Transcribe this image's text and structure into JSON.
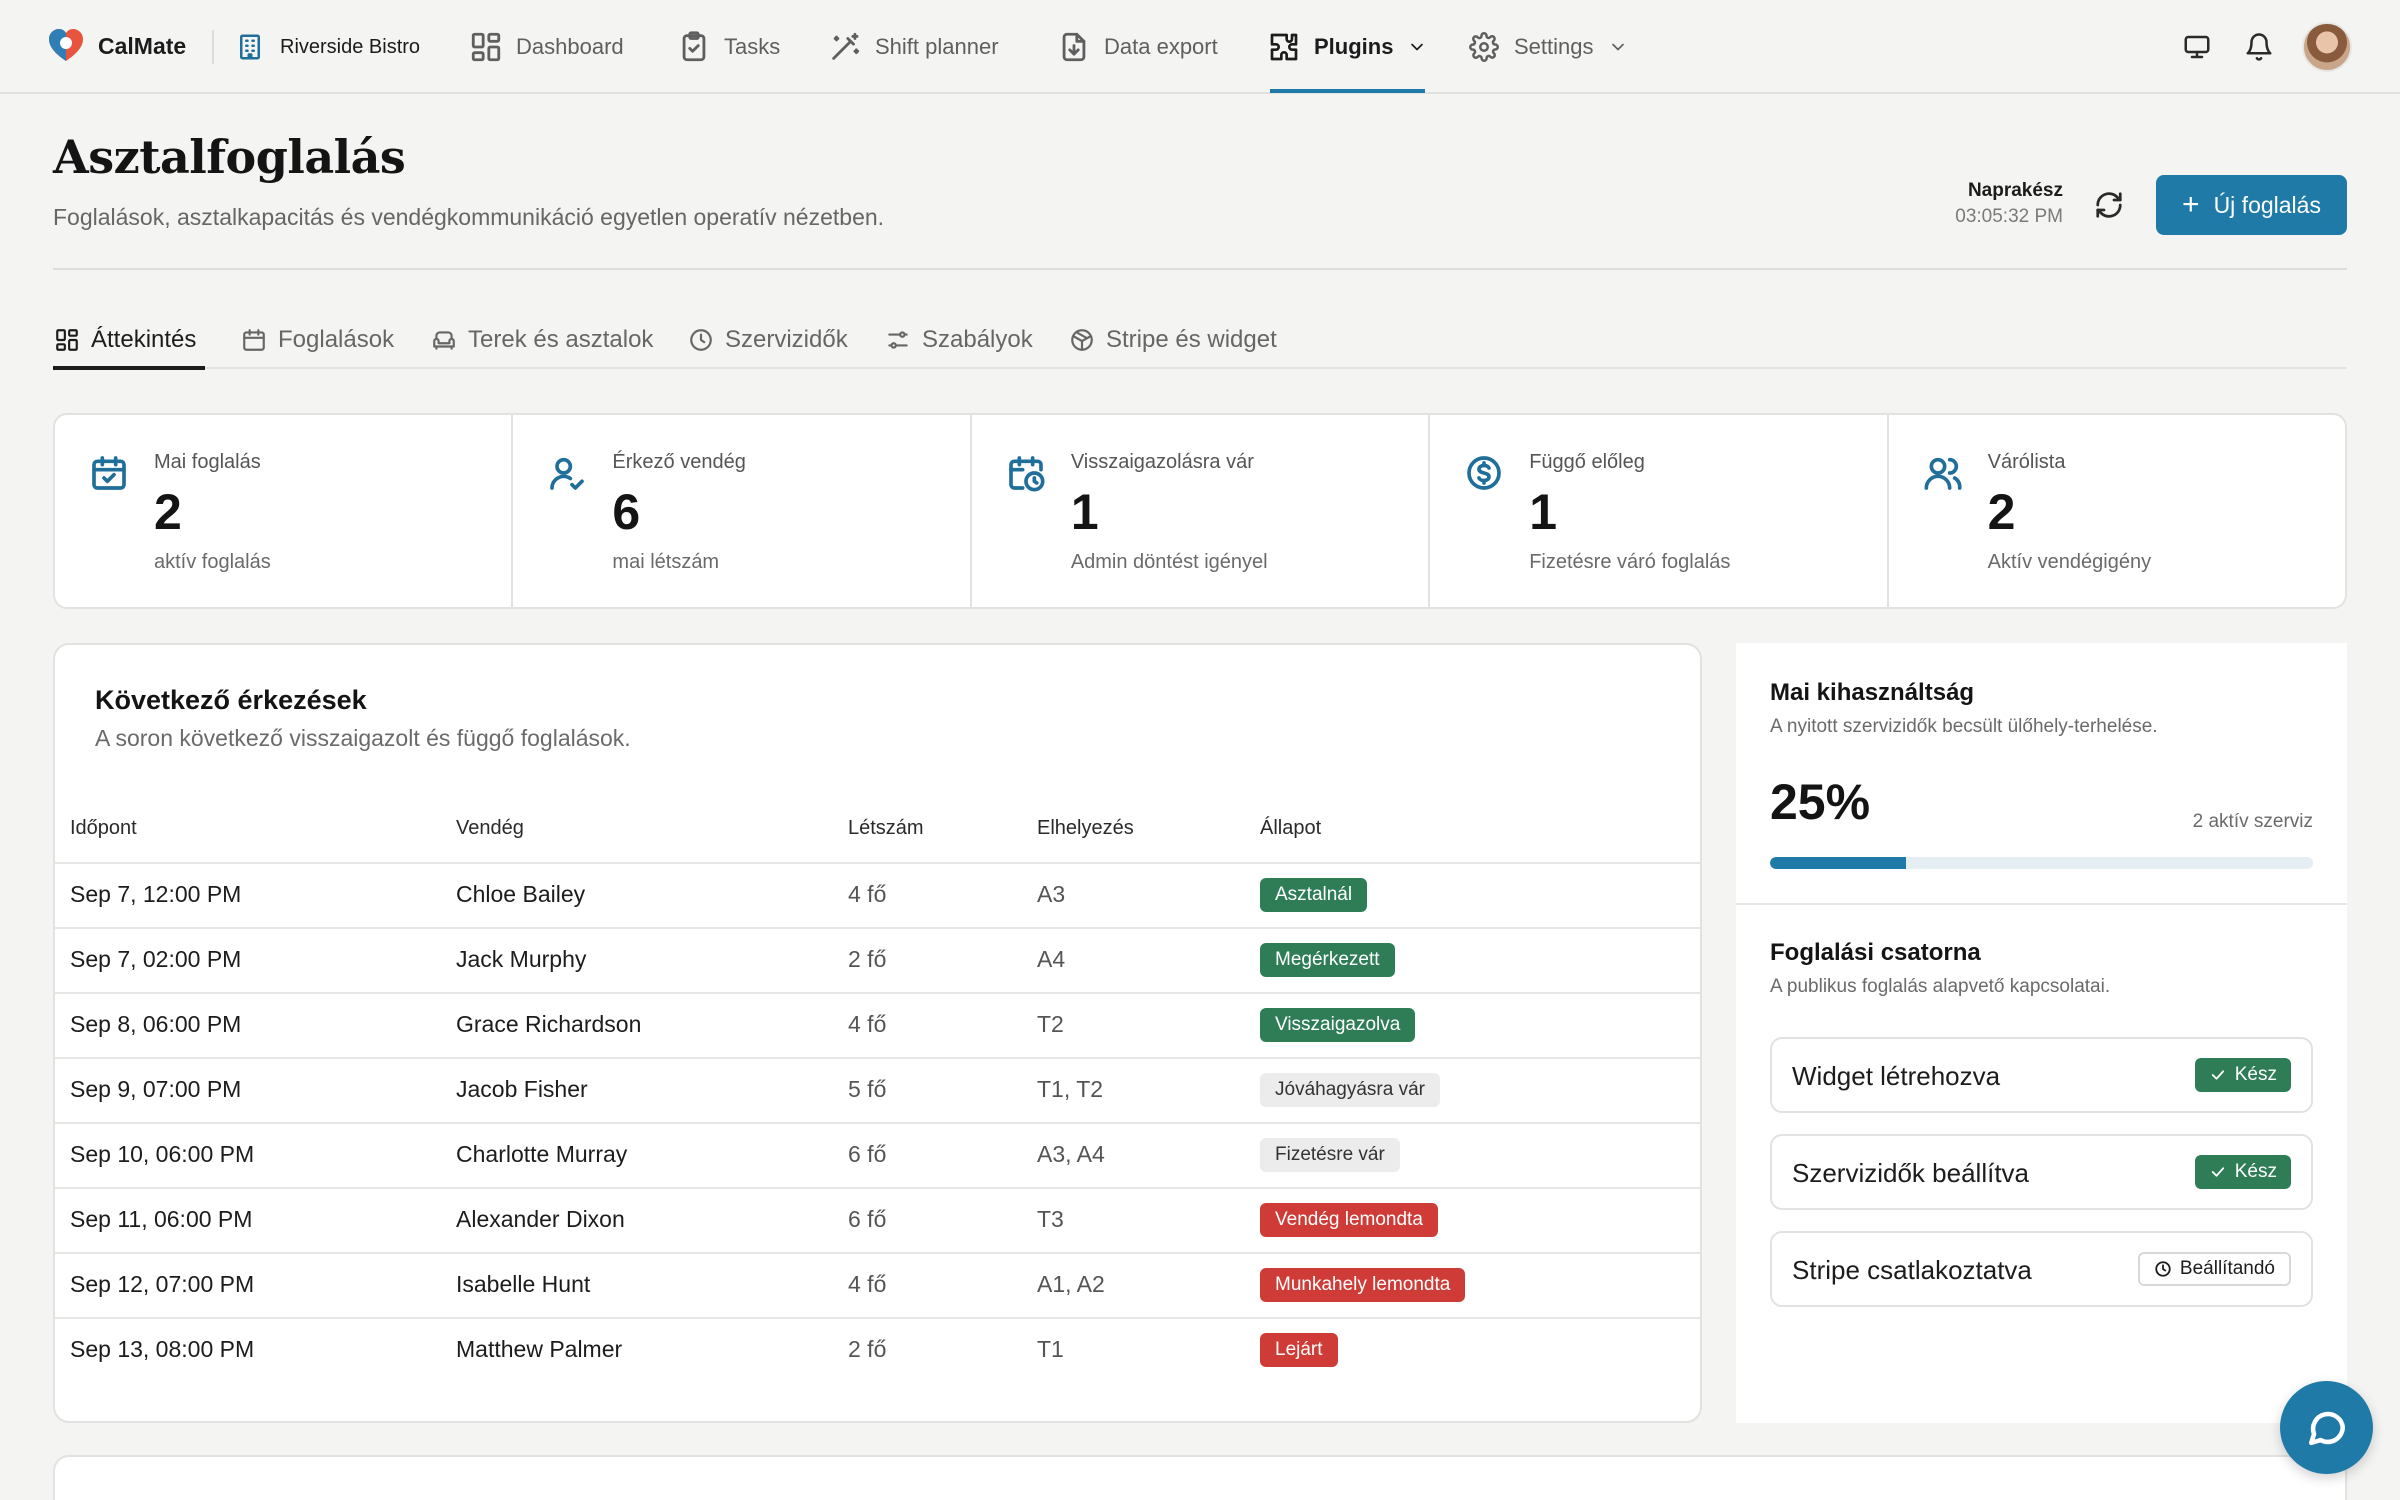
{
  "nav": {
    "brand": "CalMate",
    "org": "Riverside Bistro",
    "items": [
      {
        "label": "Dashboard",
        "icon": "dashboard-icon"
      },
      {
        "label": "Tasks",
        "icon": "clipboard-check-icon"
      },
      {
        "label": "Shift planner",
        "icon": "magic-wand-icon"
      },
      {
        "label": "Data export",
        "icon": "file-download-icon"
      },
      {
        "label": "Plugins",
        "icon": "puzzle-icon",
        "active": true
      },
      {
        "label": "Settings",
        "icon": "gear-icon"
      }
    ],
    "right_icons": [
      "monitor-icon",
      "bell-icon",
      "avatar"
    ]
  },
  "header": {
    "title": "Asztalfoglalás",
    "subtitle": "Foglalások, asztalkapacitás és vendégkommunikáció egyetlen operatív nézetben.",
    "status_label": "Naprakész",
    "status_time": "03:05:32 PM",
    "primary_button": "Új foglalás"
  },
  "tabs": [
    {
      "label": "Áttekintés",
      "icon": "grid-icon",
      "active": true
    },
    {
      "label": "Foglalások",
      "icon": "calendar-icon"
    },
    {
      "label": "Terek és asztalok",
      "icon": "sofa-icon"
    },
    {
      "label": "Szervizidők",
      "icon": "clock-icon"
    },
    {
      "label": "Szabályok",
      "icon": "sliders-icon"
    },
    {
      "label": "Stripe és widget",
      "icon": "package-icon"
    }
  ],
  "stats": [
    {
      "label": "Mai foglalás",
      "value": "2",
      "desc": "aktív foglalás",
      "icon": "calendar-check-icon"
    },
    {
      "label": "Érkező vendég",
      "value": "6",
      "desc": "mai létszám",
      "icon": "user-check-icon"
    },
    {
      "label": "Visszaigazolásra vár",
      "value": "1",
      "desc": "Admin döntést igényel",
      "icon": "calendar-clock-icon"
    },
    {
      "label": "Függő előleg",
      "value": "1",
      "desc": "Fizetésre váró foglalás",
      "icon": "dollar-circle-icon"
    },
    {
      "label": "Várólista",
      "value": "2",
      "desc": "Aktív vendégigény",
      "icon": "users-icon"
    }
  ],
  "arrivals": {
    "title": "Következő érkezések",
    "subtitle": "A soron következő visszaigazolt és függő foglalások.",
    "columns": [
      "Időpont",
      "Vendég",
      "Létszám",
      "Elhelyezés",
      "Állapot"
    ],
    "rows": [
      {
        "time": "Sep 7, 12:00 PM",
        "guest": "Chloe Bailey",
        "size": "4 fő",
        "place": "A3",
        "status": "Asztalnál",
        "tone": "green"
      },
      {
        "time": "Sep 7, 02:00 PM",
        "guest": "Jack Murphy",
        "size": "2 fő",
        "place": "A4",
        "status": "Megérkezett",
        "tone": "green"
      },
      {
        "time": "Sep 8, 06:00 PM",
        "guest": "Grace Richardson",
        "size": "4 fő",
        "place": "T2",
        "status": "Visszaigazolva",
        "tone": "green"
      },
      {
        "time": "Sep 9, 07:00 PM",
        "guest": "Jacob Fisher",
        "size": "5 fő",
        "place": "T1, T2",
        "status": "Jóváhagyásra vár",
        "tone": "gray"
      },
      {
        "time": "Sep 10, 06:00 PM",
        "guest": "Charlotte Murray",
        "size": "6 fő",
        "place": "A3, A4",
        "status": "Fizetésre vár",
        "tone": "gray"
      },
      {
        "time": "Sep 11, 06:00 PM",
        "guest": "Alexander Dixon",
        "size": "6 fő",
        "place": "T3",
        "status": "Vendég lemondta",
        "tone": "red"
      },
      {
        "time": "Sep 12, 07:00 PM",
        "guest": "Isabelle Hunt",
        "size": "4 fő",
        "place": "A1, A2",
        "status": "Munkahely lemondta",
        "tone": "red"
      },
      {
        "time": "Sep 13, 08:00 PM",
        "guest": "Matthew Palmer",
        "size": "2 fő",
        "place": "T1",
        "status": "Lejárt",
        "tone": "red"
      }
    ]
  },
  "utilization": {
    "title": "Mai kihasználtság",
    "subtitle": "A nyitott szervizidők becsült ülőhely-terhelése.",
    "percent_text": "25%",
    "percent_value": 0.25,
    "active_text": "2 aktív szerviz"
  },
  "channel": {
    "title": "Foglalási csatorna",
    "subtitle": "A publikus foglalás alapvető kapcsolatai.",
    "items": [
      {
        "label": "Widget létrehozva",
        "status": "Kész",
        "state": "done"
      },
      {
        "label": "Szervizidők beállítva",
        "status": "Kész",
        "state": "done"
      },
      {
        "label": "Stripe csatlakoztatva",
        "status": "Beállítandó",
        "state": "todo"
      }
    ]
  },
  "colors": {
    "accent": "#1f7aa8",
    "success": "#2f7d57",
    "danger": "#cf3b37",
    "neutral_badge": "#ececec"
  }
}
